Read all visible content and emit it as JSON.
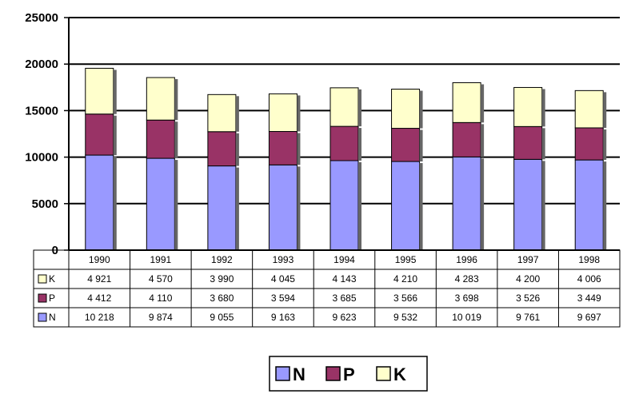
{
  "chart_data": {
    "type": "bar",
    "stacked": true,
    "title": "",
    "xlabel": "",
    "ylabel": "",
    "ylim": [
      0,
      25000
    ],
    "yticks": [
      "0",
      "5000",
      "10000",
      "15000",
      "20000",
      "25000"
    ],
    "grid": true,
    "categories": [
      "1990",
      "1991",
      "1992",
      "1993",
      "1994",
      "1995",
      "1996",
      "1997",
      "1998"
    ],
    "series": [
      {
        "name": "N",
        "color": "#9999ff",
        "values": [
          10218,
          9874,
          9055,
          9163,
          9623,
          9532,
          10019,
          9761,
          9697
        ],
        "labels": [
          "10 218",
          "9 874",
          "9 055",
          "9 163",
          "9 623",
          "9 532",
          "10 019",
          "9 761",
          "9 697"
        ]
      },
      {
        "name": "P",
        "color": "#993366",
        "values": [
          4412,
          4110,
          3680,
          3594,
          3685,
          3566,
          3698,
          3526,
          3449
        ],
        "labels": [
          "4 412",
          "4 110",
          "3 680",
          "3 594",
          "3 685",
          "3 566",
          "3 698",
          "3 526",
          "3 449"
        ]
      },
      {
        "name": "K",
        "color": "#ffffcc",
        "values": [
          4921,
          4570,
          3990,
          4045,
          4143,
          4210,
          4283,
          4200,
          4006
        ],
        "labels": [
          "4 921",
          "4 570",
          "3 990",
          "4 045",
          "4 143",
          "4 210",
          "4 283",
          "4 200",
          "4 006"
        ]
      }
    ],
    "data_table": {
      "row_order": [
        "K",
        "P",
        "N"
      ]
    },
    "legend": {
      "placement": "bottom",
      "entries": [
        "N",
        "P",
        "K"
      ]
    }
  }
}
